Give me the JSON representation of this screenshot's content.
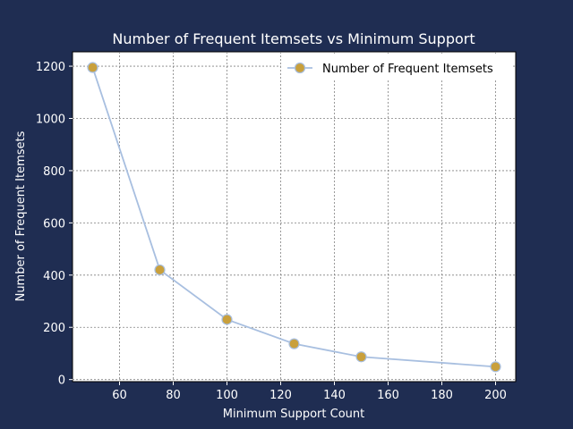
{
  "chart_data": {
    "type": "line",
    "title": "Number of Frequent Itemsets vs Minimum Support",
    "xlabel": "Minimum Support Count",
    "ylabel": "Number of Frequent Itemsets",
    "xlim": [
      42.5,
      207.5
    ],
    "ylim": [
      -8,
      1255
    ],
    "xticks": [
      60,
      80,
      100,
      120,
      140,
      160,
      180,
      200
    ],
    "yticks": [
      0,
      200,
      400,
      600,
      800,
      1000,
      1200
    ],
    "grid": true,
    "legend_position": "top-right",
    "series": [
      {
        "name": "Number of Frequent Itemsets",
        "x": [
          50,
          75,
          100,
          125,
          150,
          200
        ],
        "y": [
          1195,
          420,
          230,
          137,
          87,
          49
        ]
      }
    ]
  },
  "colors": {
    "background": "#1f2d52",
    "plot_area": "#ffffff",
    "line": "#a8bfe0",
    "marker_fill": "#c9a03c",
    "marker_edge": "#a8bfe0",
    "grid": "#808080",
    "text": "#ffffff"
  }
}
